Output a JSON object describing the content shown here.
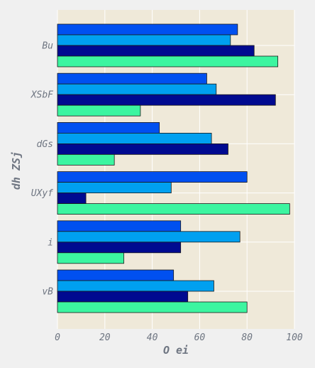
{
  "chart_data": {
    "type": "bar",
    "orientation": "horizontal",
    "categories": [
      "Bu",
      "XSbF",
      "dGs",
      "UXyf",
      "i",
      "vB"
    ],
    "series": [
      {
        "values": [
          76,
          63,
          43,
          80,
          52,
          49
        ],
        "color": "#0050f0"
      },
      {
        "values": [
          73,
          67,
          65,
          48,
          77,
          66
        ],
        "color": "#00a0f0"
      },
      {
        "values": [
          83,
          92,
          72,
          12,
          52,
          55
        ],
        "color": "#000a90"
      },
      {
        "values": [
          93,
          35,
          24,
          98,
          28,
          80
        ],
        "color": "#3cf5a0"
      }
    ],
    "xlabel": "O ei",
    "ylabel": "dh ZSj",
    "xlim": [
      0,
      100
    ],
    "xticks": [
      0,
      20,
      40,
      60,
      80,
      100
    ],
    "grid": true,
    "plot_background": "#efe9d9",
    "page_background": "#f0f0f0",
    "bar_edge_color": "#1a1a1a"
  }
}
